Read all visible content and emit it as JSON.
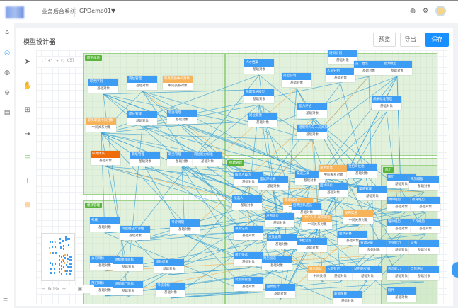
{
  "header": {
    "system_name": "业务后台系统",
    "project": "GPDemo01▼",
    "icons": [
      "globe-icon",
      "gear-icon",
      "avatar"
    ]
  },
  "nav": {
    "icons": [
      "home-icon",
      "model-icon",
      "globe-icon",
      "gear-icon",
      "list-icon"
    ]
  },
  "page": {
    "title": "模型设计器",
    "preview": "预览",
    "export": "导出",
    "save": "保存"
  },
  "colors": {
    "accent": "#3d9df5",
    "base_node": "#3d9df5",
    "mid_node": "#f6b35a",
    "special_node": "#ef6c0a",
    "group": "#5ab43c"
  },
  "tools": [
    "pointer-icon",
    "hand-icon",
    "add-node-icon",
    "arrow-icon",
    "rectangle-icon",
    "text-icon",
    "document-icon"
  ],
  "zoom": {
    "minus": "−",
    "level": "60%",
    "plus": "+"
  },
  "groups": [
    "职务体系",
    "招聘管理",
    "简历",
    "绩效管理"
  ],
  "node_types": {
    "base": "基础对象",
    "mid": "中间关系对象"
  },
  "nodes": [
    {
      "t": "职务序列",
      "k": "base"
    },
    {
      "t": "岗位管理",
      "k": "base"
    },
    {
      "t": "职务职级中间对象",
      "k": "mid"
    },
    {
      "t": "职位管理",
      "k": "base"
    },
    {
      "t": "职务管理",
      "k": "base"
    },
    {
      "t": "职务职级中间对象",
      "k": "mid"
    },
    {
      "t": "职务体系",
      "k": "sp"
    },
    {
      "t": "职级管理",
      "k": "base"
    },
    {
      "t": "职务管理",
      "k": "base"
    },
    {
      "t": "岗位能力标准",
      "k": "base"
    },
    {
      "t": "人才档案",
      "k": "base"
    },
    {
      "t": "岗位说明",
      "k": "base"
    },
    {
      "t": "人员分组",
      "k": "base"
    },
    {
      "t": "培训计划",
      "k": "base"
    },
    {
      "t": "员工档案",
      "k": "base"
    },
    {
      "t": "能力模型",
      "k": "base"
    },
    {
      "t": "任职资格模型",
      "k": "base"
    },
    {
      "t": "能力评估",
      "k": "base"
    },
    {
      "t": "薪酬标准管理",
      "k": "base"
    },
    {
      "t": "岗位职责",
      "k": "base"
    },
    {
      "t": "组织架构与人员关系",
      "k": "base"
    },
    {
      "t": "候选人履历",
      "k": "base"
    },
    {
      "t": "面试评价表",
      "k": "base"
    },
    {
      "t": "渠道方案",
      "k": "base"
    },
    {
      "t": "录用面试",
      "k": "mid"
    },
    {
      "t": "社招岗位池",
      "k": "base"
    },
    {
      "t": "候选人",
      "k": "base"
    },
    {
      "t": "面试评价",
      "k": "base"
    },
    {
      "t": "渠道管理",
      "k": "base"
    },
    {
      "t": "新增候选人",
      "k": "mid"
    },
    {
      "t": "招聘团队成员",
      "k": "base"
    },
    {
      "t": "发布岗位",
      "k": "base"
    },
    {
      "t": "中介人员-发布岗位",
      "k": "mid"
    },
    {
      "t": "发布渠道",
      "k": "mid"
    },
    {
      "t": "面试安排",
      "k": "base"
    },
    {
      "t": "录用记录",
      "k": "base"
    },
    {
      "t": "发放录用",
      "k": "base"
    },
    {
      "t": "审批流程",
      "k": "base"
    },
    {
      "t": "背调记录",
      "k": "base"
    },
    {
      "t": "简历筛选",
      "k": "base"
    },
    {
      "t": "简历投递",
      "k": "base"
    },
    {
      "t": "邀约面试",
      "k": "mid"
    },
    {
      "t": "入职登记",
      "k": "base"
    },
    {
      "t": "试用期考核",
      "k": "base"
    },
    {
      "t": "试用期管理",
      "k": "base"
    },
    {
      "t": "招聘统计",
      "k": "base"
    },
    {
      "t": "薪资核算",
      "k": "base"
    },
    {
      "t": "简历",
      "k": "base"
    },
    {
      "t": "简历模板",
      "k": "base"
    },
    {
      "t": "项目经验",
      "k": "base"
    },
    {
      "t": "教育经历",
      "k": "base"
    },
    {
      "t": "培训经历",
      "k": "base"
    },
    {
      "t": "工作经验",
      "k": "base"
    },
    {
      "t": "专业能力",
      "k": "base"
    },
    {
      "t": "证书",
      "k": "base"
    },
    {
      "t": "语言能力",
      "k": "base"
    },
    {
      "t": "自我评价",
      "k": "base"
    },
    {
      "t": "附件",
      "k": "base"
    },
    {
      "t": "考核",
      "k": "base"
    },
    {
      "t": "岗位胜任力评估",
      "k": "base"
    },
    {
      "t": "考评周期",
      "k": "base"
    },
    {
      "t": "公司目标",
      "k": "base"
    },
    {
      "t": "组织绩效目标",
      "k": "base"
    },
    {
      "t": "绩效结果",
      "k": "base"
    },
    {
      "t": "部门目标",
      "k": "base"
    },
    {
      "t": "组织部门目标",
      "k": "base"
    },
    {
      "t": "考核指标",
      "k": "base"
    }
  ]
}
